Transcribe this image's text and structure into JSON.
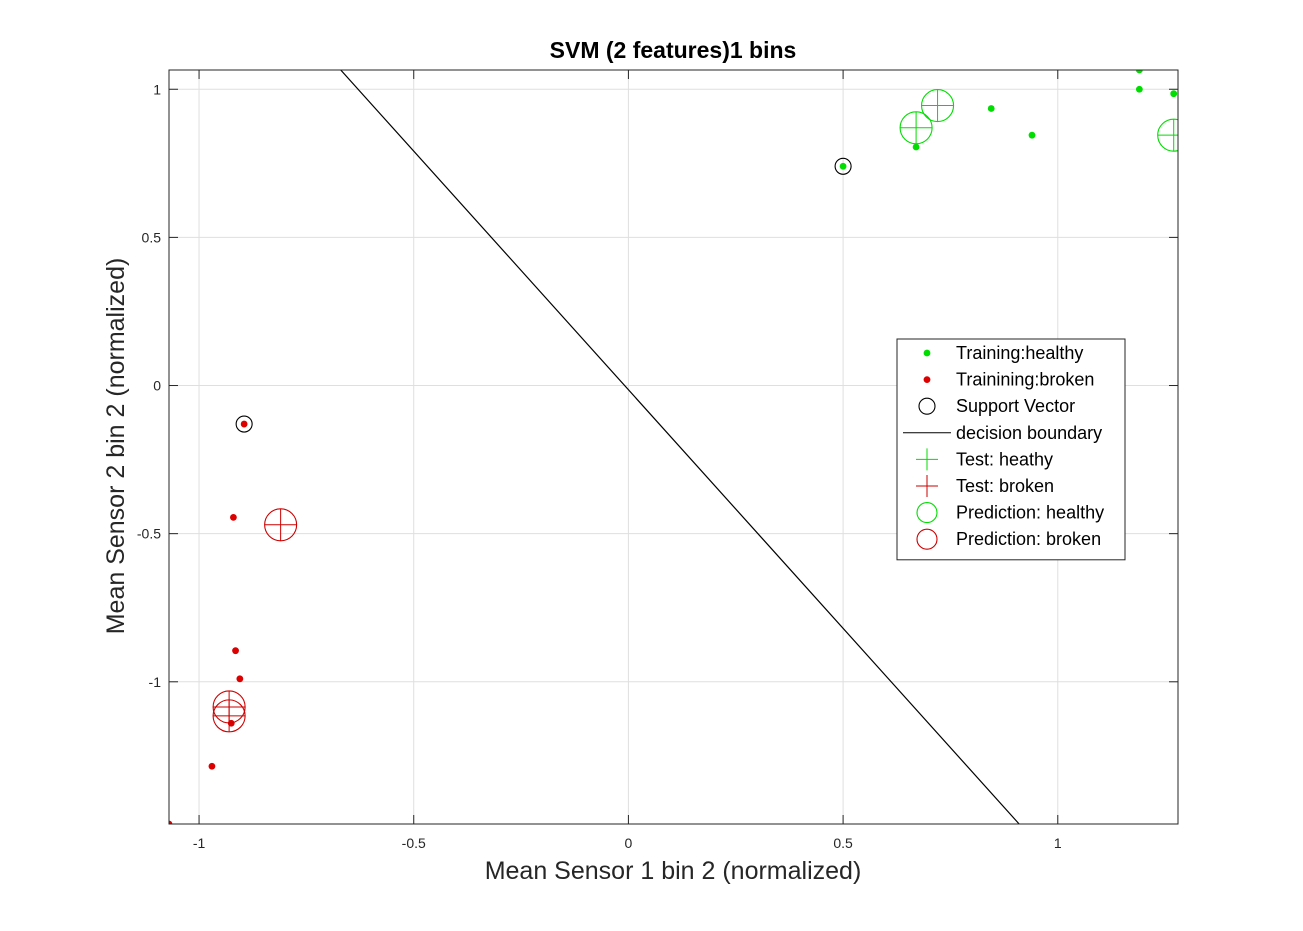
{
  "chart_data": {
    "type": "scatter",
    "title": "SVM (2 features)1 bins",
    "xlabel": "Mean Sensor 1 bin 2 (normalized)",
    "ylabel": "Mean Sensor 2 bin 2 (normalized)",
    "xlim": [
      -1.07,
      1.28
    ],
    "ylim": [
      -1.48,
      1.065
    ],
    "xticks": [
      -1,
      -0.5,
      0,
      0.5,
      1
    ],
    "xtick_labels": [
      "-1",
      "-0.5",
      "0",
      "0.5",
      "1"
    ],
    "yticks": [
      -1,
      -0.5,
      0,
      0.5,
      1
    ],
    "ytick_labels": [
      "-1",
      "-0.5",
      "0",
      "0.5",
      "1"
    ],
    "grid": true,
    "legend_position": "right-middle",
    "series": [
      {
        "name": "Training:healthy",
        "marker": "dot",
        "color": "#00dd00",
        "points": [
          [
            1.19,
            1.065
          ],
          [
            1.19,
            1.0
          ],
          [
            1.27,
            0.985
          ],
          [
            0.845,
            0.935
          ],
          [
            0.94,
            0.845
          ],
          [
            0.67,
            0.805
          ],
          [
            0.5,
            0.74
          ]
        ]
      },
      {
        "name": "Trainining:broken",
        "marker": "dot",
        "color": "#dd0000",
        "points": [
          [
            -0.895,
            -0.13
          ],
          [
            -0.92,
            -0.445
          ],
          [
            -0.915,
            -0.895
          ],
          [
            -0.905,
            -0.99
          ],
          [
            -0.925,
            -1.14
          ],
          [
            -0.97,
            -1.285
          ],
          [
            -1.07,
            -1.48
          ]
        ]
      },
      {
        "name": "Support Vector",
        "marker": "circle",
        "color": "#000000",
        "points": [
          [
            0.5,
            0.74
          ],
          [
            -0.895,
            -0.13
          ]
        ]
      },
      {
        "name": "decision boundary",
        "marker": "line",
        "color": "#000000",
        "points": [
          [
            -0.67,
            1.065
          ],
          [
            0.91,
            -1.48
          ]
        ]
      },
      {
        "name": "Test: heathy",
        "marker": "plus",
        "color": "#00dd00",
        "points": [
          [
            0.72,
            0.945
          ],
          [
            0.67,
            0.87
          ],
          [
            1.27,
            0.845
          ]
        ]
      },
      {
        "name": "Test: broken",
        "marker": "plus",
        "color": "#cc0000",
        "points": [
          [
            -0.81,
            -0.47
          ],
          [
            -0.93,
            -1.085
          ],
          [
            -0.93,
            -1.115
          ]
        ]
      },
      {
        "name": "Prediction: healthy",
        "marker": "big-circle",
        "color": "#00dd00",
        "points": [
          [
            0.72,
            0.945
          ],
          [
            0.67,
            0.87
          ],
          [
            1.27,
            0.845
          ]
        ]
      },
      {
        "name": "Prediction: broken",
        "marker": "big-circle",
        "color": "#cc0000",
        "points": [
          [
            -0.81,
            -0.47
          ],
          [
            -0.93,
            -1.085
          ],
          [
            -0.93,
            -1.115
          ]
        ]
      }
    ]
  }
}
